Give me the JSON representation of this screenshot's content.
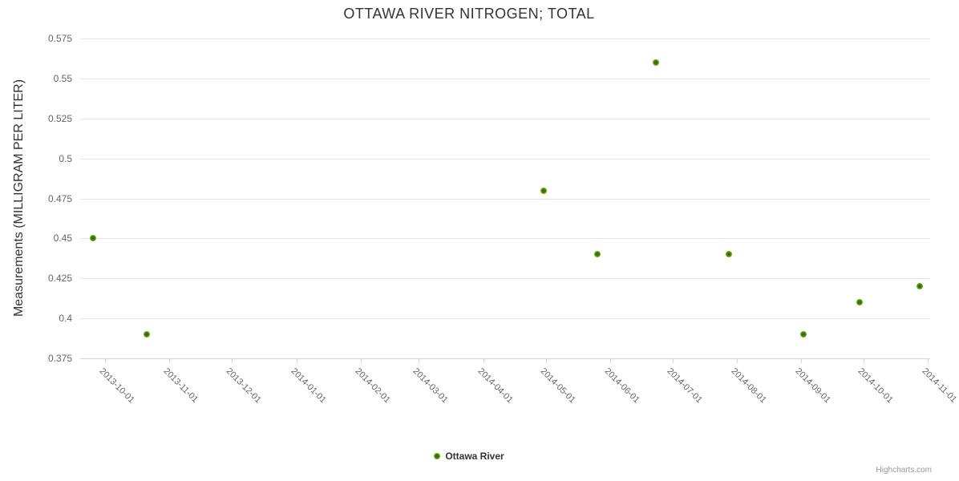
{
  "title": "OTTAWA RIVER NITROGEN; TOTAL",
  "y_axis_title": "Measurements (MILLIGRAM PER LITER)",
  "legend": {
    "series_label": "Ottawa River"
  },
  "credits": "Highcharts.com",
  "colors": {
    "marker_center": "#3c6e06",
    "marker_edge": "#76c41e",
    "grid": "#e6e6e6",
    "axis_line": "#ccd6eb",
    "tick_label": "#666666",
    "title_text": "#333333"
  },
  "chart_data": {
    "type": "scatter",
    "title": "OTTAWA RIVER NITROGEN; TOTAL",
    "xlabel": "",
    "ylabel": "Measurements (MILLIGRAM PER LITER)",
    "ylim": [
      0.375,
      0.575
    ],
    "y_ticks": [
      0.375,
      0.4,
      0.425,
      0.45,
      0.475,
      0.5,
      0.525,
      0.55,
      0.575
    ],
    "x_min": "2013-09-19",
    "x_max": "2014-11-02",
    "x_tick_labels": [
      "2013-10-01",
      "2013-11-01",
      "2013-12-01",
      "2014-01-01",
      "2014-02-01",
      "2014-03-01",
      "2014-04-01",
      "2014-05-01",
      "2014-06-01",
      "2014-07-01",
      "2014-08-01",
      "2014-09-01",
      "2014-10-01",
      "2014-11-01"
    ],
    "grid": true,
    "legend_position": "bottom-center",
    "series": [
      {
        "name": "Ottawa River",
        "points": [
          {
            "date": "2013-09-25",
            "value": 0.45
          },
          {
            "date": "2013-10-21",
            "value": 0.39
          },
          {
            "date": "2014-04-30",
            "value": 0.48
          },
          {
            "date": "2014-05-26",
            "value": 0.44
          },
          {
            "date": "2014-06-23",
            "value": 0.56
          },
          {
            "date": "2014-07-28",
            "value": 0.44
          },
          {
            "date": "2014-09-02",
            "value": 0.39
          },
          {
            "date": "2014-09-29",
            "value": 0.41
          },
          {
            "date": "2014-10-28",
            "value": 0.42
          }
        ]
      }
    ]
  }
}
